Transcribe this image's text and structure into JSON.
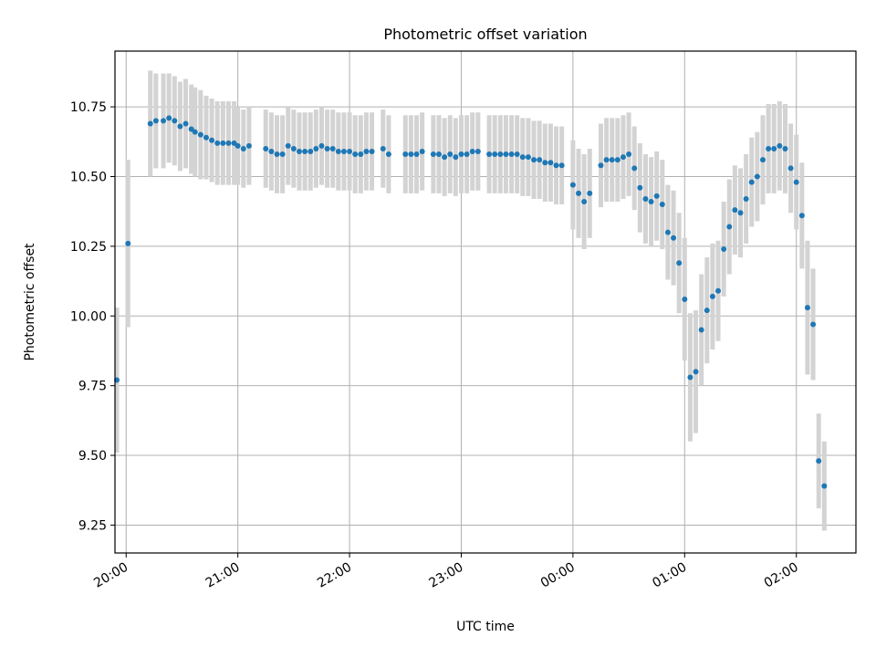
{
  "chart_data": {
    "type": "scatter",
    "title": "Photometric offset variation",
    "xlabel": "UTC time",
    "ylabel": "Photometric offset",
    "x_unit": "UTC clock time (hours from 20:00 shown on ticks)",
    "xlim": [
      "19:54",
      "02:32"
    ],
    "ylim": [
      9.15,
      10.95
    ],
    "xticks": [
      "20:00",
      "21:00",
      "22:00",
      "23:00",
      "00:00",
      "01:00",
      "02:00"
    ],
    "yticks": [
      "9.25",
      "9.50",
      "9.75",
      "10.00",
      "10.25",
      "10.50",
      "10.75"
    ],
    "grid": true,
    "colors": {
      "point": "#1f77b4",
      "errorbar": "#d3d3d3",
      "grid": "#b0b0b0"
    },
    "series": [
      {
        "x": [
          "19:55",
          "20:01",
          "20:13",
          "20:16",
          "20:20",
          "20:23",
          "20:26",
          "20:29",
          "20:32",
          "20:35",
          "20:37",
          "20:40",
          "20:43",
          "20:46",
          "20:49",
          "20:52",
          "20:55",
          "20:58",
          "21:00",
          "21:03",
          "21:06",
          "21:15",
          "21:18",
          "21:21",
          "21:24",
          "21:27",
          "21:30",
          "21:33",
          "21:36",
          "21:39",
          "21:42",
          "21:45",
          "21:48",
          "21:51",
          "21:54",
          "21:57",
          "22:00",
          "22:03",
          "22:06",
          "22:09",
          "22:12",
          "22:18",
          "22:21",
          "22:30",
          "22:33",
          "22:36",
          "22:39",
          "22:45",
          "22:48",
          "22:51",
          "22:54",
          "22:57",
          "23:00",
          "23:03",
          "23:06",
          "23:09",
          "23:15",
          "23:18",
          "23:21",
          "23:24",
          "23:27",
          "23:30",
          "23:33",
          "23:36",
          "23:39",
          "23:42",
          "23:45",
          "23:48",
          "23:51",
          "23:54",
          "00:00",
          "00:03",
          "00:06",
          "00:09",
          "00:15",
          "00:18",
          "00:21",
          "00:24",
          "00:27",
          "00:30",
          "00:33",
          "00:36",
          "00:39",
          "00:42",
          "00:45",
          "00:48",
          "00:51",
          "00:54",
          "00:57",
          "01:00",
          "01:03",
          "01:06",
          "01:09",
          "01:12",
          "01:15",
          "01:18",
          "01:21",
          "01:24",
          "01:27",
          "01:30",
          "01:33",
          "01:36",
          "01:39",
          "01:42",
          "01:45",
          "01:48",
          "01:51",
          "01:54",
          "01:57",
          "02:00",
          "02:03",
          "02:06",
          "02:09",
          "02:12",
          "02:15"
        ],
        "y": [
          9.77,
          10.26,
          10.69,
          10.7,
          10.7,
          10.71,
          10.7,
          10.68,
          10.69,
          10.67,
          10.66,
          10.65,
          10.64,
          10.63,
          10.62,
          10.62,
          10.62,
          10.62,
          10.61,
          10.6,
          10.61,
          10.6,
          10.59,
          10.58,
          10.58,
          10.61,
          10.6,
          10.59,
          10.59,
          10.59,
          10.6,
          10.61,
          10.6,
          10.6,
          10.59,
          10.59,
          10.59,
          10.58,
          10.58,
          10.59,
          10.59,
          10.6,
          10.58,
          10.58,
          10.58,
          10.58,
          10.59,
          10.58,
          10.58,
          10.57,
          10.58,
          10.57,
          10.58,
          10.58,
          10.59,
          10.59,
          10.58,
          10.58,
          10.58,
          10.58,
          10.58,
          10.58,
          10.57,
          10.57,
          10.56,
          10.56,
          10.55,
          10.55,
          10.54,
          10.54,
          10.47,
          10.44,
          10.41,
          10.44,
          10.54,
          10.56,
          10.56,
          10.56,
          10.57,
          10.58,
          10.53,
          10.46,
          10.42,
          10.41,
          10.43,
          10.4,
          10.3,
          10.28,
          10.19,
          10.06,
          9.78,
          9.8,
          9.95,
          10.02,
          10.07,
          10.09,
          10.24,
          10.32,
          10.38,
          10.37,
          10.42,
          10.48,
          10.5,
          10.56,
          10.6,
          10.6,
          10.61,
          10.6,
          10.53,
          10.48,
          10.36,
          10.03,
          9.97,
          9.48,
          9.39
        ],
        "yerr": [
          0.26,
          0.3,
          0.19,
          0.17,
          0.17,
          0.16,
          0.16,
          0.16,
          0.16,
          0.16,
          0.16,
          0.16,
          0.15,
          0.15,
          0.15,
          0.15,
          0.15,
          0.15,
          0.14,
          0.14,
          0.14,
          0.14,
          0.14,
          0.14,
          0.14,
          0.14,
          0.14,
          0.14,
          0.14,
          0.14,
          0.14,
          0.14,
          0.14,
          0.14,
          0.14,
          0.14,
          0.14,
          0.14,
          0.14,
          0.14,
          0.14,
          0.14,
          0.14,
          0.14,
          0.14,
          0.14,
          0.14,
          0.14,
          0.14,
          0.14,
          0.14,
          0.14,
          0.14,
          0.14,
          0.14,
          0.14,
          0.14,
          0.14,
          0.14,
          0.14,
          0.14,
          0.14,
          0.14,
          0.14,
          0.14,
          0.14,
          0.14,
          0.14,
          0.14,
          0.14,
          0.16,
          0.16,
          0.17,
          0.16,
          0.15,
          0.15,
          0.15,
          0.15,
          0.15,
          0.15,
          0.15,
          0.16,
          0.16,
          0.16,
          0.16,
          0.16,
          0.17,
          0.17,
          0.18,
          0.22,
          0.23,
          0.22,
          0.2,
          0.19,
          0.19,
          0.18,
          0.17,
          0.17,
          0.16,
          0.16,
          0.16,
          0.16,
          0.16,
          0.16,
          0.16,
          0.16,
          0.16,
          0.16,
          0.16,
          0.17,
          0.19,
          0.24,
          0.2,
          0.17,
          0.16
        ]
      }
    ]
  }
}
